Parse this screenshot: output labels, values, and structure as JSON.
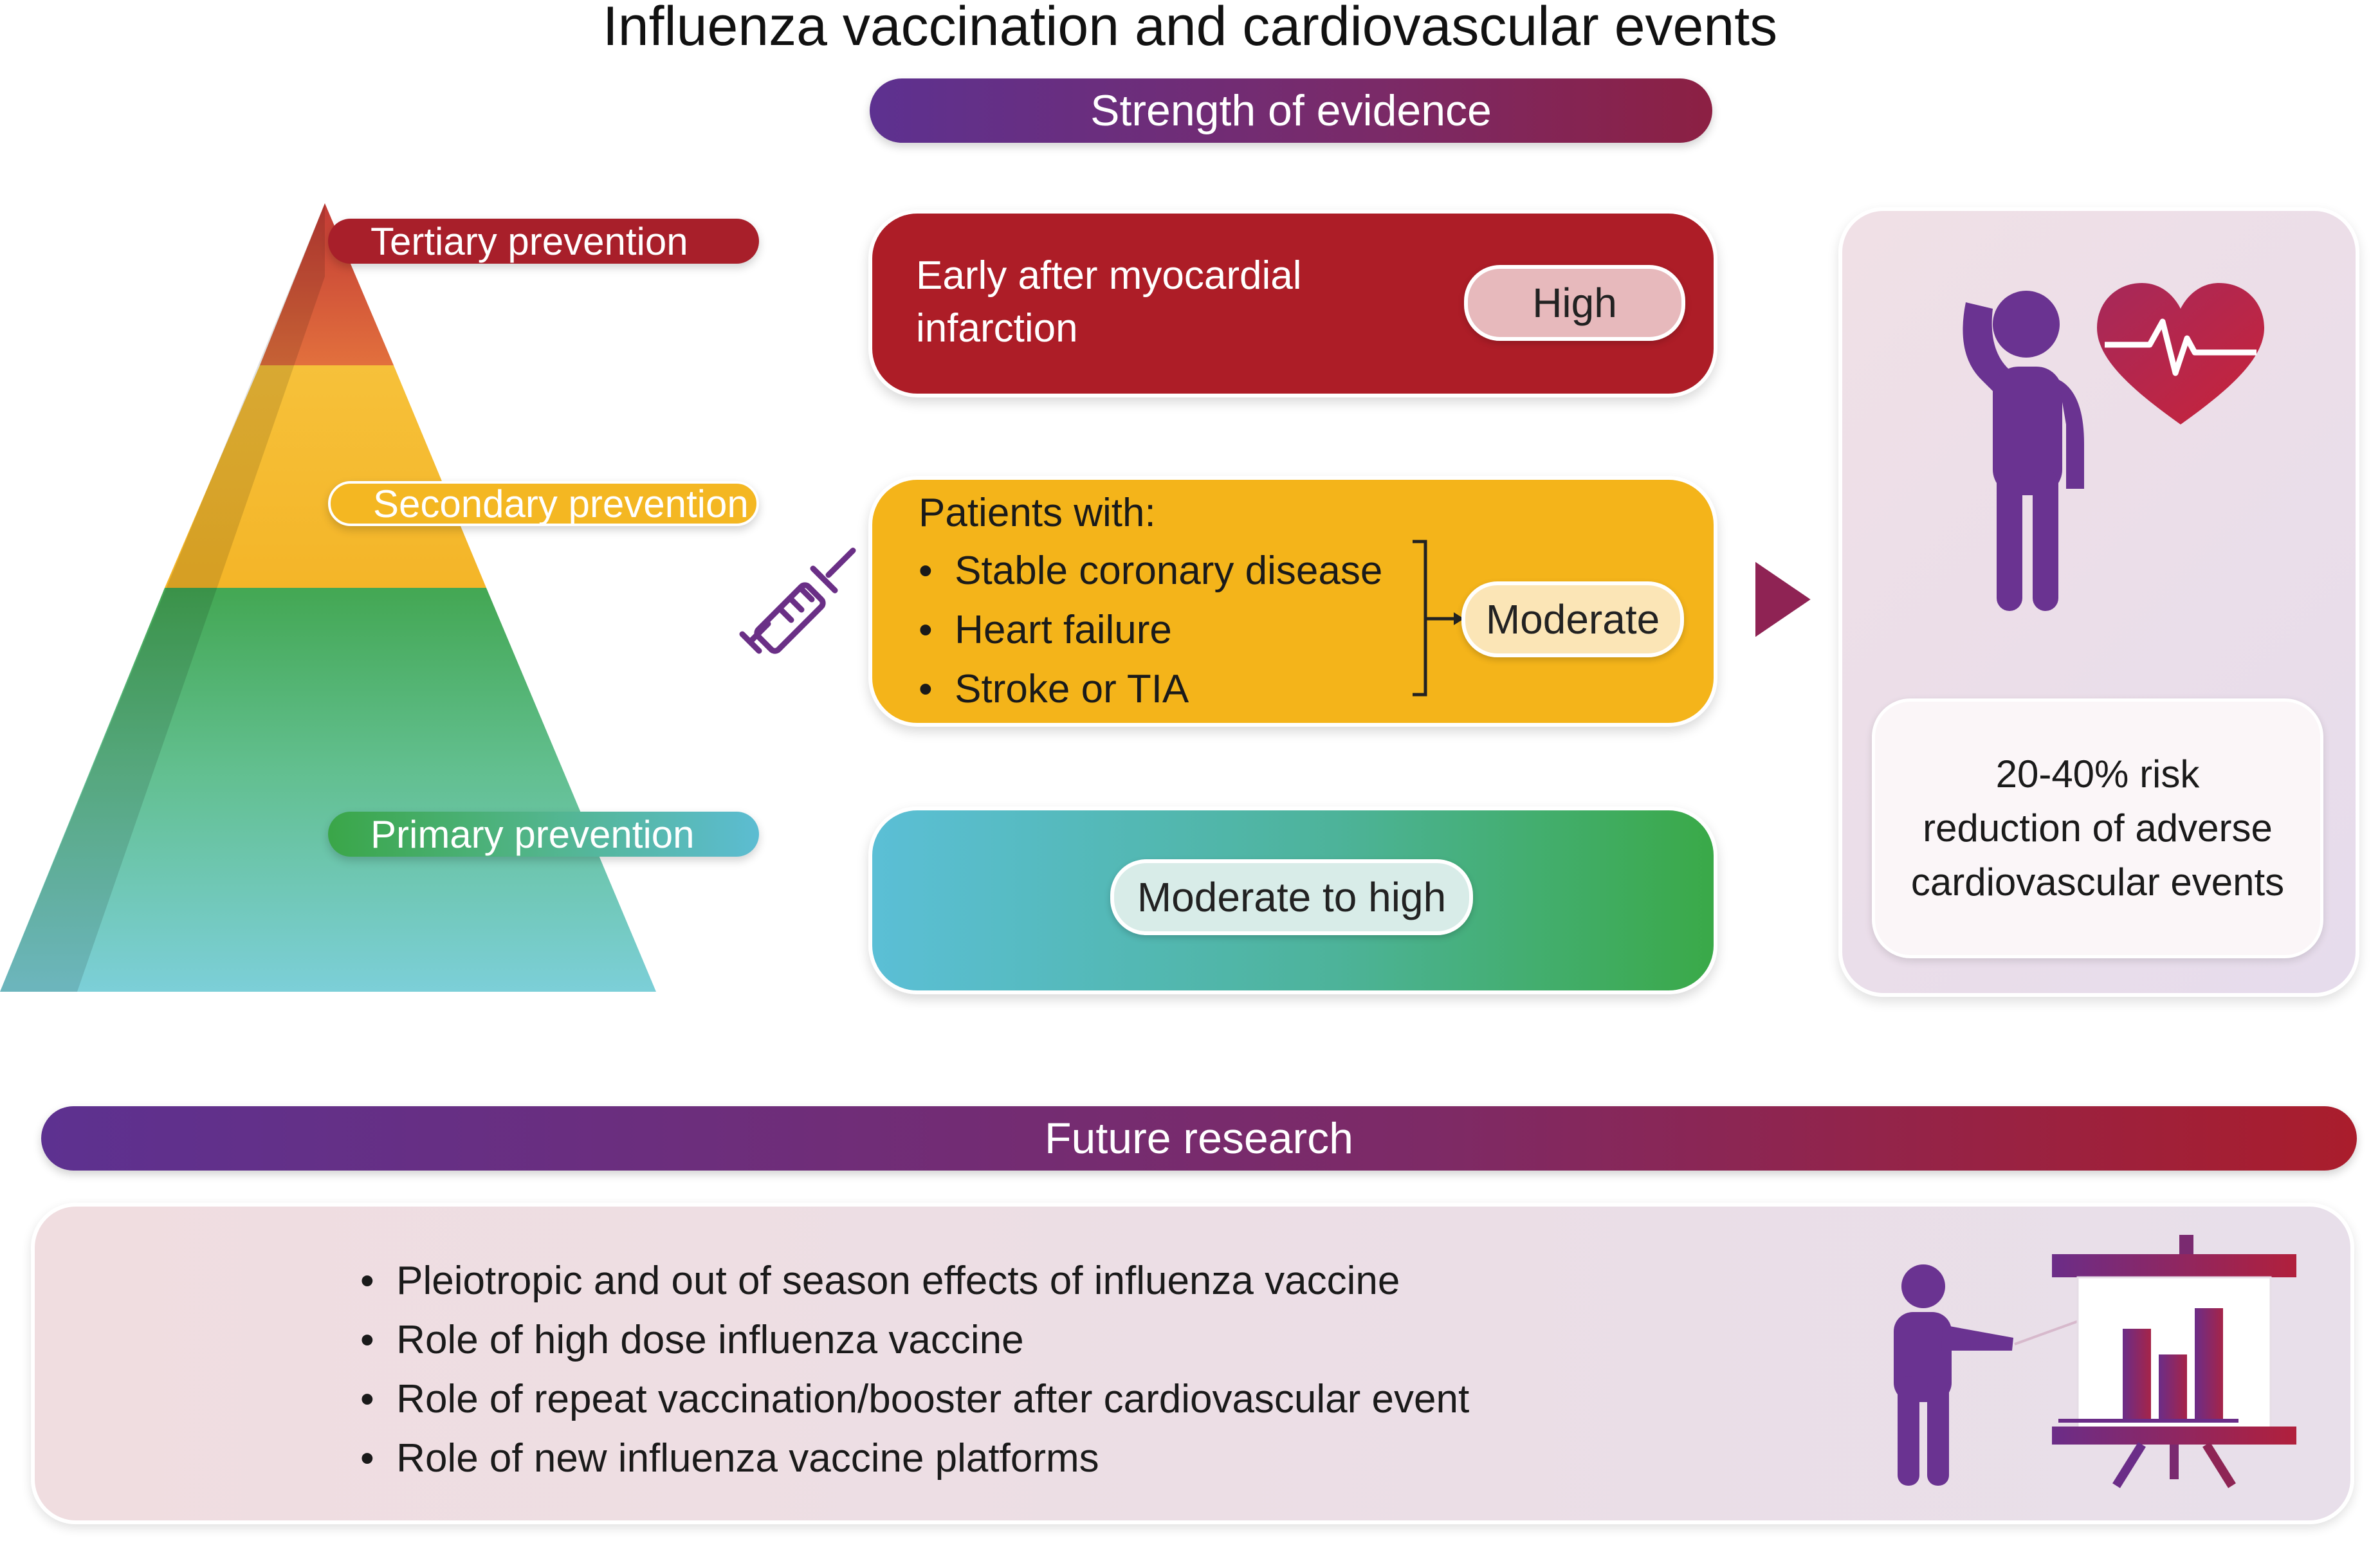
{
  "title": "Influenza vaccination and cardiovascular events",
  "strength_header": "Strength of evidence",
  "pyramid": {
    "tertiary": "Tertiary prevention",
    "secondary": "Secondary prevention",
    "primary": "Primary prevention"
  },
  "cards": {
    "high": {
      "text_line1": "Early after myocardial",
      "text_line2": "infarction",
      "badge": "High"
    },
    "moderate": {
      "heading": "Patients with:",
      "items": [
        "Stable coronary disease",
        "Heart failure",
        "Stroke or TIA"
      ],
      "badge": "Moderate"
    },
    "primary": {
      "badge": "Moderate to high"
    }
  },
  "outcome": {
    "line1": "20-40% risk",
    "line2": "reduction of adverse",
    "line3": "cardiovascular events"
  },
  "future_header": "Future research",
  "future_items": [
    "Pleiotropic and out of season effects of influenza vaccine",
    "Role of high dose influenza vaccine",
    "Role of repeat vaccination/booster after cardiovascular event",
    "Role of new influenza vaccine platforms"
  ],
  "colors": {
    "purple": "#5d3190",
    "red": "#ad1d27",
    "yellow": "#f4b41a",
    "green": "#3aa948",
    "teal": "#5bbfd6"
  },
  "icons": [
    "syringe-icon",
    "arrow-right-icon",
    "person-icon",
    "heart-pulse-icon",
    "presenter-icon",
    "bar-chart-board-icon"
  ]
}
